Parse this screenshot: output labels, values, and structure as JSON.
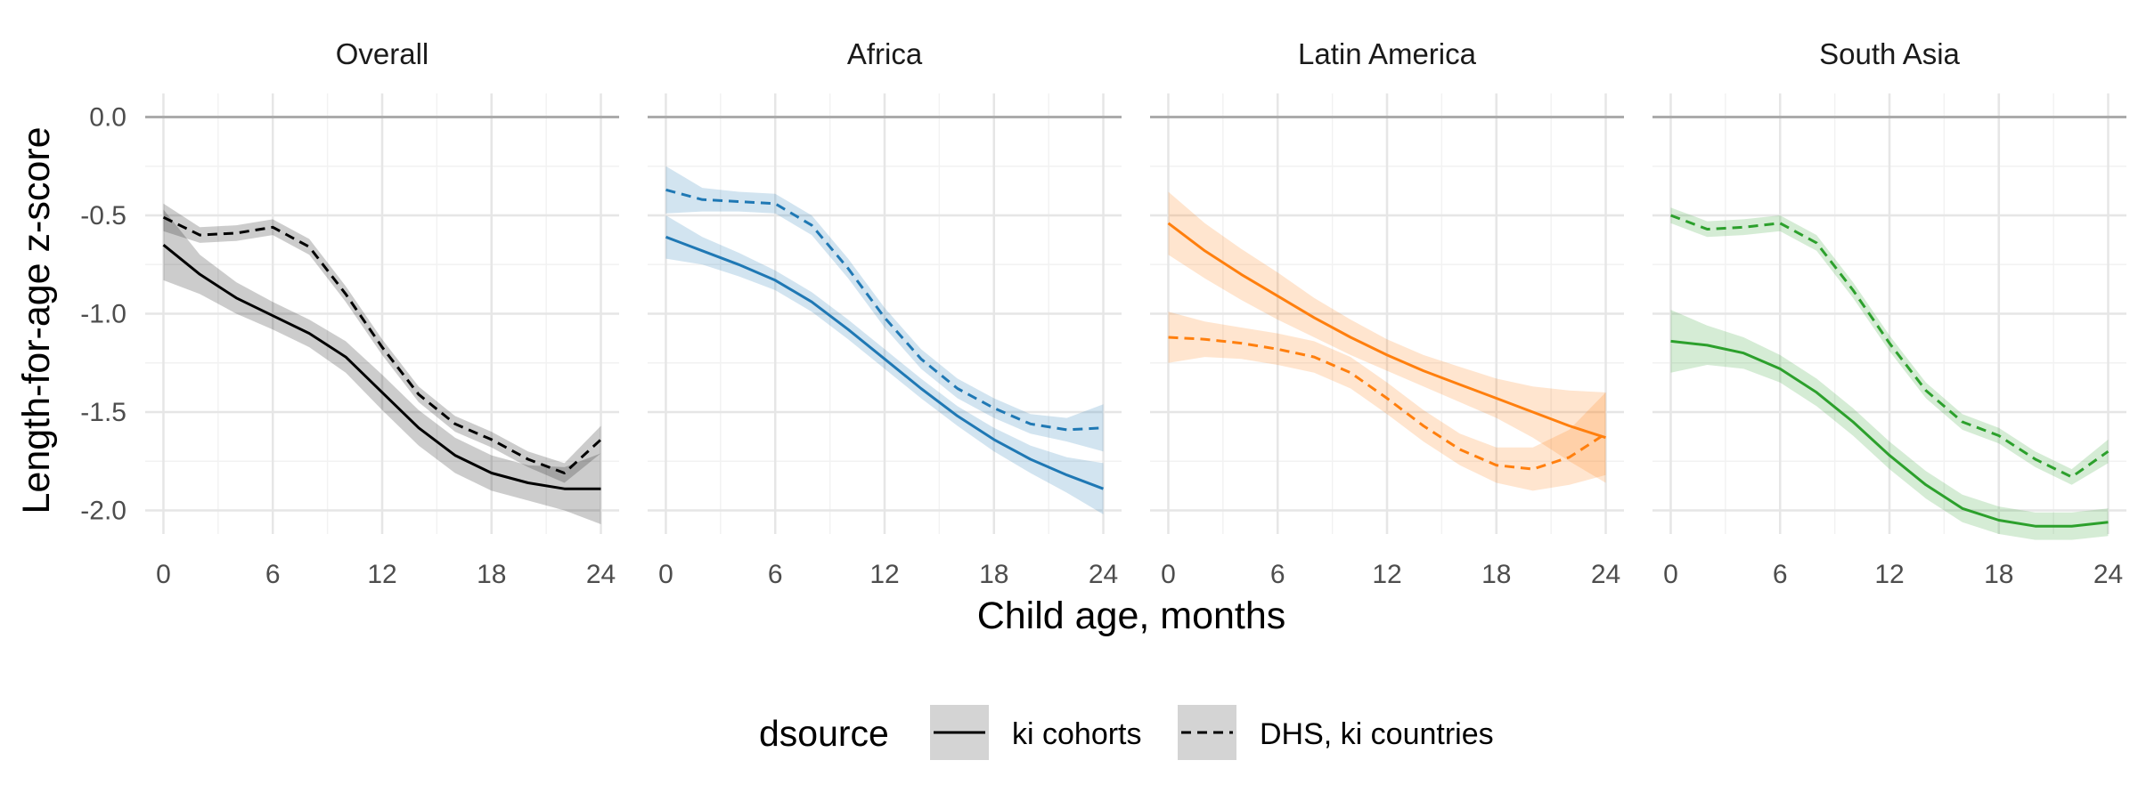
{
  "chart_data": {
    "type": "line",
    "x_label": "Child age, months",
    "y_label": "Length-for-age z-score",
    "x_ticks": [
      0,
      6,
      12,
      18,
      24
    ],
    "y_ticks": [
      0.0,
      -0.5,
      -1.0,
      -1.5,
      -2.0
    ],
    "y_tick_labels": [
      "0.0",
      "-0.5",
      "-1.0",
      "-1.5",
      "-2.0"
    ],
    "xlim": [
      -1,
      25
    ],
    "ylim": [
      -2.12,
      0.12
    ],
    "reference_line_y": 0,
    "grid": true,
    "legend": {
      "title": "dsource",
      "position": "bottom",
      "entries": [
        {
          "label": "ki cohorts",
          "linetype": "solid"
        },
        {
          "label": "DHS, ki countries",
          "linetype": "dashed"
        }
      ]
    },
    "panels": [
      {
        "title": "Overall",
        "color": "#000000",
        "x": [
          0,
          2,
          4,
          6,
          8,
          10,
          12,
          14,
          16,
          18,
          20,
          22,
          24
        ],
        "series": [
          {
            "name": "ki cohorts",
            "linetype": "solid",
            "y": [
              -0.65,
              -0.8,
              -0.92,
              -1.01,
              -1.1,
              -1.22,
              -1.4,
              -1.58,
              -1.72,
              -1.81,
              -1.86,
              -1.89,
              -1.89
            ],
            "lower": [
              -0.83,
              -0.9,
              -1.0,
              -1.08,
              -1.17,
              -1.3,
              -1.49,
              -1.67,
              -1.81,
              -1.9,
              -1.95,
              -2.0,
              -2.07
            ],
            "upper": [
              -0.47,
              -0.7,
              -0.84,
              -0.94,
              -1.03,
              -1.14,
              -1.31,
              -1.49,
              -1.63,
              -1.72,
              -1.77,
              -1.78,
              -1.71
            ]
          },
          {
            "name": "DHS, ki countries",
            "linetype": "dashed",
            "y": [
              -0.51,
              -0.6,
              -0.59,
              -0.56,
              -0.66,
              -0.9,
              -1.17,
              -1.41,
              -1.56,
              -1.64,
              -1.74,
              -1.81,
              -1.64
            ],
            "lower": [
              -0.58,
              -0.64,
              -0.63,
              -0.6,
              -0.7,
              -0.94,
              -1.21,
              -1.45,
              -1.6,
              -1.68,
              -1.78,
              -1.86,
              -1.71
            ],
            "upper": [
              -0.44,
              -0.56,
              -0.55,
              -0.52,
              -0.62,
              -0.86,
              -1.13,
              -1.37,
              -1.52,
              -1.6,
              -1.7,
              -1.76,
              -1.57
            ]
          }
        ]
      },
      {
        "title": "Africa",
        "color": "#1f78b4",
        "x": [
          0,
          2,
          4,
          6,
          8,
          10,
          12,
          14,
          16,
          18,
          20,
          22,
          24
        ],
        "series": [
          {
            "name": "ki cohorts",
            "linetype": "solid",
            "y": [
              -0.61,
              -0.68,
              -0.75,
              -0.83,
              -0.94,
              -1.08,
              -1.23,
              -1.38,
              -1.52,
              -1.64,
              -1.74,
              -1.82,
              -1.89
            ],
            "lower": [
              -0.72,
              -0.75,
              -0.81,
              -0.88,
              -0.99,
              -1.13,
              -1.28,
              -1.43,
              -1.57,
              -1.7,
              -1.81,
              -1.91,
              -2.02
            ],
            "upper": [
              -0.5,
              -0.61,
              -0.69,
              -0.78,
              -0.89,
              -1.03,
              -1.18,
              -1.33,
              -1.47,
              -1.58,
              -1.67,
              -1.73,
              -1.76
            ]
          },
          {
            "name": "DHS, ki countries",
            "linetype": "dashed",
            "y": [
              -0.37,
              -0.42,
              -0.43,
              -0.44,
              -0.55,
              -0.77,
              -1.02,
              -1.23,
              -1.38,
              -1.48,
              -1.56,
              -1.59,
              -1.58
            ],
            "lower": [
              -0.49,
              -0.48,
              -0.48,
              -0.49,
              -0.6,
              -0.82,
              -1.07,
              -1.28,
              -1.43,
              -1.53,
              -1.61,
              -1.65,
              -1.7
            ],
            "upper": [
              -0.25,
              -0.36,
              -0.38,
              -0.39,
              -0.5,
              -0.72,
              -0.97,
              -1.18,
              -1.33,
              -1.43,
              -1.51,
              -1.53,
              -1.46
            ]
          }
        ]
      },
      {
        "title": "Latin America",
        "color": "#ff7f0e",
        "x": [
          0,
          2,
          4,
          6,
          8,
          10,
          12,
          14,
          16,
          18,
          20,
          22,
          24
        ],
        "series": [
          {
            "name": "ki cohorts",
            "linetype": "solid",
            "y": [
              -0.54,
              -0.68,
              -0.8,
              -0.91,
              -1.02,
              -1.12,
              -1.21,
              -1.29,
              -1.36,
              -1.43,
              -1.5,
              -1.57,
              -1.63
            ],
            "lower": [
              -0.7,
              -0.82,
              -0.93,
              -1.03,
              -1.12,
              -1.21,
              -1.29,
              -1.37,
              -1.45,
              -1.53,
              -1.63,
              -1.75,
              -1.86
            ],
            "upper": [
              -0.38,
              -0.54,
              -0.67,
              -0.79,
              -0.92,
              -1.03,
              -1.13,
              -1.21,
              -1.27,
              -1.33,
              -1.37,
              -1.39,
              -1.4
            ]
          },
          {
            "name": "DHS, ki countries",
            "linetype": "dashed",
            "y": [
              -1.12,
              -1.13,
              -1.15,
              -1.18,
              -1.22,
              -1.3,
              -1.43,
              -1.57,
              -1.69,
              -1.77,
              -1.79,
              -1.73,
              -1.61
            ],
            "lower": [
              -1.25,
              -1.22,
              -1.23,
              -1.26,
              -1.3,
              -1.38,
              -1.51,
              -1.65,
              -1.77,
              -1.86,
              -1.9,
              -1.87,
              -1.82
            ],
            "upper": [
              -0.99,
              -1.04,
              -1.07,
              -1.1,
              -1.14,
              -1.22,
              -1.35,
              -1.49,
              -1.61,
              -1.68,
              -1.68,
              -1.59,
              -1.4
            ]
          }
        ]
      },
      {
        "title": "South Asia",
        "color": "#2ca02c",
        "x": [
          0,
          2,
          4,
          6,
          8,
          10,
          12,
          14,
          16,
          18,
          20,
          22,
          24
        ],
        "series": [
          {
            "name": "ki cohorts",
            "linetype": "solid",
            "y": [
              -1.14,
              -1.16,
              -1.2,
              -1.28,
              -1.4,
              -1.55,
              -1.72,
              -1.87,
              -1.99,
              -2.05,
              -2.08,
              -2.08,
              -2.06
            ],
            "lower": [
              -1.3,
              -1.26,
              -1.28,
              -1.35,
              -1.47,
              -1.62,
              -1.79,
              -1.94,
              -2.06,
              -2.12,
              -2.15,
              -2.15,
              -2.13
            ],
            "upper": [
              -0.98,
              -1.06,
              -1.12,
              -1.21,
              -1.33,
              -1.48,
              -1.65,
              -1.8,
              -1.92,
              -1.98,
              -2.01,
              -2.01,
              -1.99
            ]
          },
          {
            "name": "DHS, ki countries",
            "linetype": "dashed",
            "y": [
              -0.5,
              -0.57,
              -0.56,
              -0.54,
              -0.64,
              -0.88,
              -1.15,
              -1.39,
              -1.55,
              -1.62,
              -1.74,
              -1.83,
              -1.7
            ],
            "lower": [
              -0.54,
              -0.61,
              -0.6,
              -0.58,
              -0.68,
              -0.92,
              -1.19,
              -1.43,
              -1.59,
              -1.66,
              -1.78,
              -1.87,
              -1.76
            ],
            "upper": [
              -0.46,
              -0.53,
              -0.52,
              -0.5,
              -0.6,
              -0.84,
              -1.11,
              -1.35,
              -1.51,
              -1.58,
              -1.7,
              -1.79,
              -1.64
            ]
          }
        ]
      }
    ]
  }
}
